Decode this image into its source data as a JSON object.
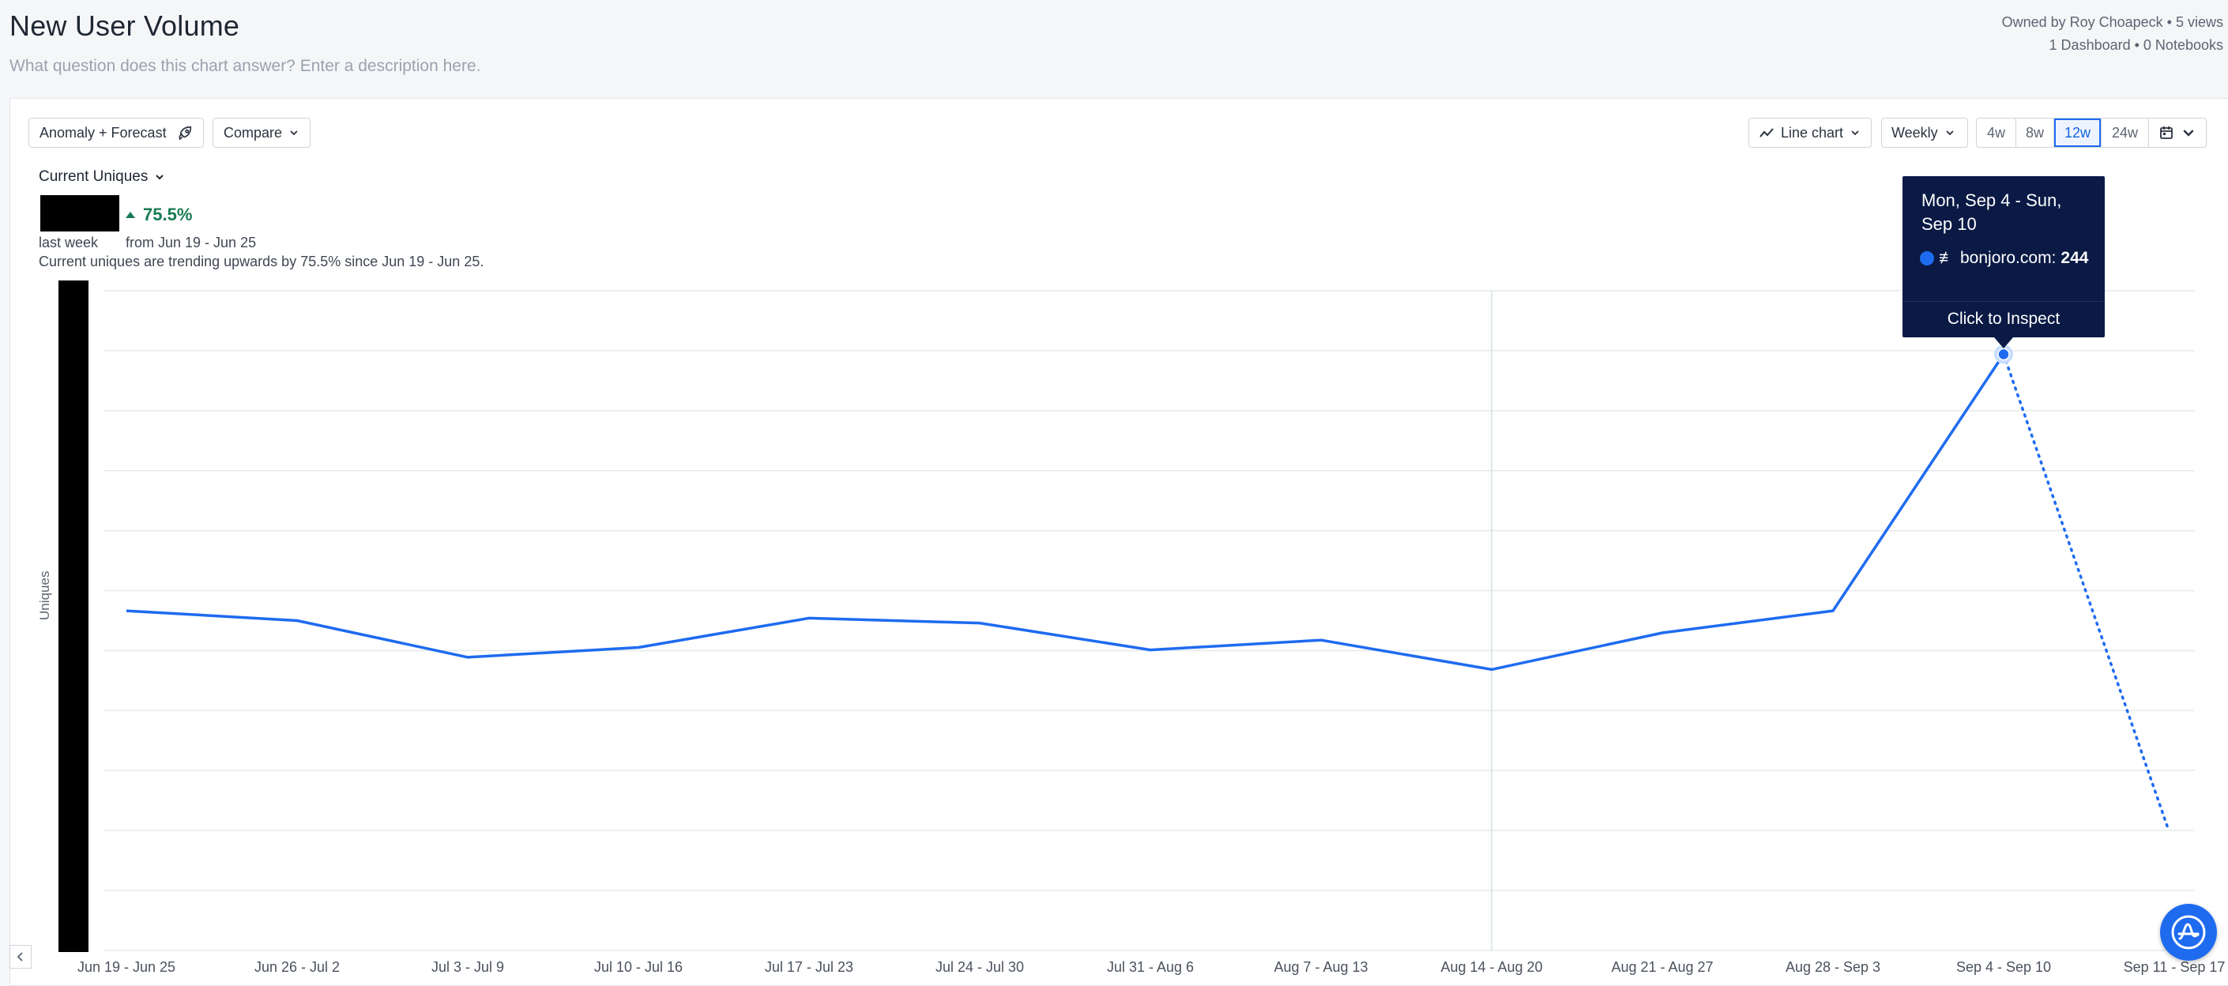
{
  "header": {
    "title": "New User Volume",
    "description_placeholder": "What question does this chart answer? Enter a description here.",
    "owner_line": "Owned by Roy Choapeck • 5 views",
    "usage_line": "1 Dashboard • 0 Notebooks"
  },
  "toolbar": {
    "anomaly_label": "Anomaly + Forecast",
    "compare_label": "Compare",
    "chart_type_label": "Line chart",
    "interval_label": "Weekly",
    "ranges": [
      "4w",
      "8w",
      "12w",
      "24w"
    ],
    "active_range": "12w"
  },
  "summary": {
    "metric_label": "Current Uniques",
    "delta": "75.5%",
    "period_label": "last week",
    "comparison_label": "from Jun 19 - Jun 25",
    "insight": "Current uniques are trending upwards by 75.5% since Jun 19 - Jun 25."
  },
  "tooltip": {
    "date": "Mon, Sep 4 - Sun, Sep 10",
    "series_prefix": "≢",
    "series_name": "bonjoro.com:",
    "value": "244",
    "action": "Click to Inspect"
  },
  "chart_data": {
    "type": "line",
    "ylabel": "Uniques",
    "xlabel": "",
    "grid": true,
    "categories": [
      "Jun 19 - Jun 25",
      "Jun 26 - Jul 2",
      "Jul 3 - Jul 9",
      "Jul 10 - Jul 16",
      "Jul 17 - Jul 23",
      "Jul 24 - Jul 30",
      "Jul 31 - Aug 6",
      "Aug 7 - Aug 13",
      "Aug 14 - Aug 20",
      "Aug 21 - Aug 27",
      "Aug 28 - Sep 3",
      "Sep 4 - Sep 10",
      "Sep 11 - Sep 17"
    ],
    "series": [
      {
        "name": "bonjoro.com",
        "values": [
          139,
          135,
          120,
          124,
          136,
          134,
          123,
          127,
          115,
          130,
          139,
          244,
          null
        ],
        "incomplete_segment": [
          244,
          50
        ]
      }
    ],
    "ylim": [
      0,
      270
    ],
    "highlighted_index": 11,
    "reference_line_index": 8,
    "colors": {
      "line": "#1e6bf0"
    }
  }
}
